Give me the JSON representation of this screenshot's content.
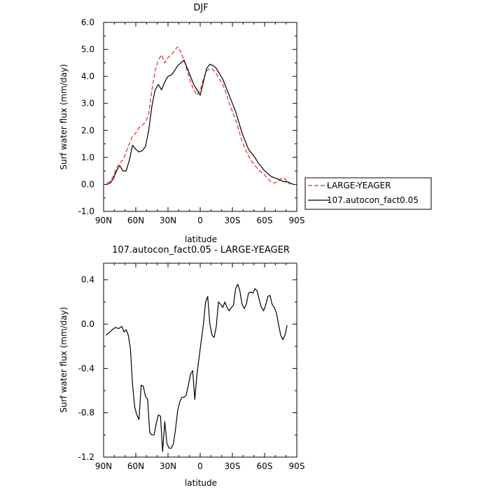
{
  "chart_data": [
    {
      "type": "line",
      "title": "DJF",
      "xlabel": "latitude",
      "ylabel": "Surf water flux (mm/day)",
      "x_tick_labels": [
        "90N",
        "60N",
        "30N",
        "0",
        "30S",
        "60S",
        "90S"
      ],
      "x_tick_values": [
        90,
        60,
        30,
        0,
        -30,
        -60,
        -90
      ],
      "xlim": [
        90,
        -90
      ],
      "y_tick_labels": [
        "-1.0",
        "0.0",
        "1.0",
        "2.0",
        "3.0",
        "4.0",
        "5.0",
        "6.0"
      ],
      "y_tick_values": [
        -1,
        0,
        1,
        2,
        3,
        4,
        5,
        6
      ],
      "ylim": [
        -1,
        6
      ],
      "grid": false,
      "legend_position": "right-bottom, outside plot",
      "series": [
        {
          "name": "LARGE-YEAGER",
          "color": "#e3262b",
          "style": "dashed",
          "x": [
            87,
            84,
            81,
            78,
            75,
            72,
            69,
            66,
            63,
            60,
            57,
            54,
            51,
            48,
            45,
            42,
            39,
            36,
            33,
            30,
            27,
            24,
            21,
            18,
            15,
            12,
            9,
            6,
            3,
            0,
            -3,
            -6,
            -9,
            -12,
            -15,
            -18,
            -21,
            -24,
            -27,
            -30,
            -33,
            -36,
            -39,
            -42,
            -45,
            -48,
            -51,
            -54,
            -57,
            -60,
            -63,
            -66,
            -69,
            -72,
            -75,
            -78,
            -81,
            -84
          ],
          "y": [
            0.05,
            0.1,
            0.3,
            0.6,
            0.8,
            0.9,
            1.2,
            1.5,
            1.8,
            1.9,
            2.1,
            2.2,
            2.3,
            2.6,
            3.5,
            4.2,
            4.6,
            4.8,
            4.5,
            4.7,
            4.8,
            4.95,
            5.1,
            4.9,
            4.6,
            4.2,
            3.8,
            3.5,
            3.3,
            3.5,
            3.9,
            4.2,
            4.3,
            4.25,
            4.1,
            3.9,
            3.7,
            3.4,
            3.0,
            2.7,
            2.4,
            2.0,
            1.6,
            1.3,
            1.05,
            0.85,
            0.7,
            0.55,
            0.45,
            0.35,
            0.2,
            0.1,
            0.05,
            0.1,
            0.2,
            0.25,
            0.1,
            0.0
          ]
        },
        {
          "name": "107.autocon_fact0.05",
          "color": "#000000",
          "style": "solid",
          "x": [
            87,
            84,
            81,
            78,
            75,
            72,
            69,
            66,
            63,
            60,
            57,
            54,
            51,
            48,
            45,
            42,
            39,
            36,
            33,
            30,
            27,
            24,
            21,
            18,
            15,
            12,
            9,
            6,
            3,
            0,
            -3,
            -6,
            -9,
            -12,
            -15,
            -18,
            -21,
            -24,
            -27,
            -30,
            -33,
            -36,
            -39,
            -42,
            -45,
            -48,
            -51,
            -54,
            -57,
            -60,
            -63,
            -66,
            -69,
            -72,
            -75,
            -78,
            -81,
            -84,
            -87
          ],
          "y": [
            0.0,
            0.05,
            0.2,
            0.5,
            0.7,
            0.5,
            0.5,
            0.9,
            1.45,
            1.3,
            1.2,
            1.25,
            1.4,
            2.0,
            2.9,
            3.5,
            3.7,
            3.5,
            3.8,
            4.0,
            4.05,
            4.2,
            4.4,
            4.5,
            4.6,
            4.3,
            4.0,
            3.7,
            3.5,
            3.3,
            3.8,
            4.3,
            4.45,
            4.4,
            4.3,
            4.1,
            3.9,
            3.6,
            3.3,
            3.0,
            2.7,
            2.3,
            1.9,
            1.6,
            1.3,
            1.15,
            1.0,
            0.8,
            0.65,
            0.5,
            0.4,
            0.3,
            0.25,
            0.2,
            0.15,
            0.1,
            0.1,
            0.05,
            0.0
          ]
        }
      ]
    },
    {
      "type": "line",
      "title": "107.autocon_fact0.05 - LARGE-YEAGER",
      "xlabel": "latitude",
      "ylabel": "Surf water flux (mm/day)",
      "x_tick_labels": [
        "90N",
        "60N",
        "30N",
        "0",
        "30S",
        "60S",
        "90S"
      ],
      "x_tick_values": [
        90,
        60,
        30,
        0,
        -30,
        -60,
        -90
      ],
      "xlim": [
        90,
        -90
      ],
      "y_tick_labels": [
        "-1.2",
        "-0.8",
        "-0.4",
        "0.0",
        "0.4"
      ],
      "y_tick_values": [
        -1.2,
        -0.8,
        -0.4,
        0.0,
        0.4
      ],
      "ylim": [
        -1.2,
        0.55
      ],
      "grid": false,
      "series": [
        {
          "color": "#000000",
          "style": "solid",
          "x": [
            88,
            85,
            82,
            79,
            76,
            73,
            71,
            69,
            67,
            65,
            63,
            61,
            59,
            57,
            55,
            53,
            51,
            49,
            47,
            45,
            43,
            41,
            39,
            37,
            35,
            33,
            31,
            29,
            27,
            25,
            23,
            21,
            19,
            17,
            15,
            13,
            11,
            9,
            7,
            5,
            3,
            1,
            -1,
            -3,
            -5,
            -7,
            -9,
            -11,
            -13,
            -15,
            -17,
            -19,
            -21,
            -23,
            -25,
            -27,
            -29,
            -31,
            -33,
            -35,
            -37,
            -39,
            -41,
            -43,
            -45,
            -47,
            -49,
            -51,
            -53,
            -55,
            -57,
            -59,
            -61,
            -63,
            -65,
            -67,
            -69,
            -71,
            -73,
            -75,
            -77,
            -79,
            -81
          ],
          "y": [
            -0.1,
            -0.08,
            -0.05,
            -0.03,
            -0.04,
            -0.02,
            -0.07,
            -0.05,
            -0.1,
            -0.22,
            -0.55,
            -0.75,
            -0.82,
            -0.86,
            -0.55,
            -0.56,
            -0.65,
            -0.68,
            -0.98,
            -1.0,
            -1.0,
            -0.9,
            -0.82,
            -0.83,
            -1.15,
            -0.88,
            -1.08,
            -1.12,
            -1.12,
            -1.08,
            -0.95,
            -0.78,
            -0.7,
            -0.66,
            -0.66,
            -0.64,
            -0.55,
            -0.45,
            -0.42,
            -0.68,
            -0.45,
            -0.3,
            -0.15,
            0.0,
            0.2,
            0.25,
            0.0,
            -0.1,
            -0.12,
            -0.02,
            0.2,
            0.18,
            0.15,
            0.2,
            0.15,
            0.12,
            0.15,
            0.17,
            0.32,
            0.36,
            0.3,
            0.18,
            0.14,
            0.18,
            0.28,
            0.29,
            0.28,
            0.32,
            0.3,
            0.22,
            0.15,
            0.12,
            0.17,
            0.25,
            0.26,
            0.18,
            0.15,
            0.1,
            0.0,
            -0.1,
            -0.14,
            -0.1,
            -0.01
          ]
        }
      ]
    }
  ]
}
